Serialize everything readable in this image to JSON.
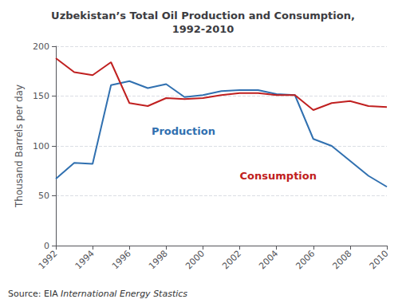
{
  "chart_data": {
    "type": "line",
    "title": "Uzbekistan’s Total Oil Production and Consumption,\n1992-2010",
    "ylabel": "Thousand Barrels per day",
    "source": "Source: EIA",
    "source_italic": "International Energy Stastics",
    "x": [
      1992,
      1993,
      1994,
      1995,
      1996,
      1997,
      1998,
      1999,
      2000,
      2001,
      2002,
      2003,
      2004,
      2005,
      2006,
      2007,
      2008,
      2009,
      2010
    ],
    "series": [
      {
        "name": "Production",
        "color": "#3070B0",
        "values": [
          67,
          83,
          82,
          161,
          165,
          158,
          162,
          149,
          151,
          155,
          156,
          156,
          152,
          151,
          107,
          100,
          85,
          70,
          59
        ]
      },
      {
        "name": "Consumption",
        "color": "#C02020",
        "values": [
          188,
          174,
          171,
          184,
          143,
          140,
          148,
          147,
          148,
          151,
          153,
          153,
          151,
          151,
          136,
          143,
          145,
          140,
          139
        ]
      }
    ],
    "annotations": [
      {
        "text": "Production",
        "x": 1997.2,
        "y": 115,
        "color": "#3070B0"
      },
      {
        "text": "Consumption",
        "x": 2002.0,
        "y": 70,
        "color": "#C02020"
      }
    ],
    "xlim": [
      1992,
      2010
    ],
    "xticks": [
      1992,
      1994,
      1996,
      1998,
      2000,
      2002,
      2004,
      2006,
      2008,
      2010
    ],
    "ylim": [
      0,
      200
    ],
    "yticks": [
      0,
      50,
      100,
      150,
      200
    ],
    "grid": "y"
  }
}
